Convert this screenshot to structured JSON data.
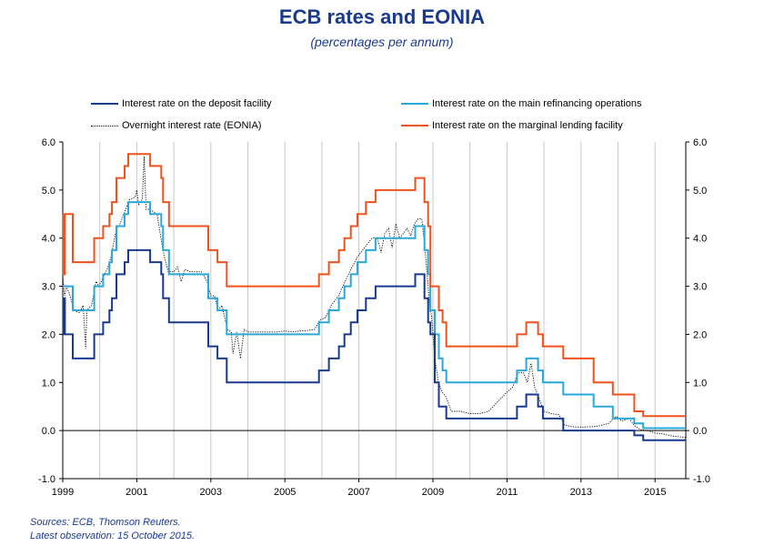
{
  "title": "ECB rates and EONIA",
  "subtitle": "(percentages per annum)",
  "footer": {
    "sources": "Sources: ECB, Thomson Reuters.",
    "latest": "Latest observation: 15 October 2015."
  },
  "colors": {
    "deposit": "#173a8c",
    "mro": "#2aa8d8",
    "marginal": "#f0521e",
    "eonia": "#000000",
    "grid": "#c8c8c8"
  },
  "chart_data": {
    "type": "line",
    "title": "ECB rates and EONIA",
    "subtitle": "(percentages per annum)",
    "xlim": [
      1999.0,
      2015.83
    ],
    "ylim": [
      -1.0,
      6.0
    ],
    "x_ticks": [
      "1999",
      "2001",
      "2003",
      "2005",
      "2007",
      "2009",
      "2011",
      "2013",
      "2015"
    ],
    "y_ticks": [
      "-1.0",
      "0.0",
      "1.0",
      "2.0",
      "3.0",
      "4.0",
      "5.0",
      "6.0"
    ],
    "grid": "vertical",
    "legend_position": "top",
    "series": [
      {
        "name": "Interest rate on the deposit facility",
        "style": "step",
        "points": [
          [
            1999.0,
            2.0
          ],
          [
            1999.02,
            2.75
          ],
          [
            1999.06,
            2.0
          ],
          [
            1999.27,
            1.5
          ],
          [
            1999.85,
            2.0
          ],
          [
            2000.09,
            2.25
          ],
          [
            2000.26,
            2.5
          ],
          [
            2000.33,
            2.75
          ],
          [
            2000.45,
            3.25
          ],
          [
            2000.67,
            3.5
          ],
          [
            2000.77,
            3.75
          ],
          [
            2001.36,
            3.5
          ],
          [
            2001.66,
            3.25
          ],
          [
            2001.71,
            2.75
          ],
          [
            2001.87,
            2.25
          ],
          [
            2002.93,
            1.75
          ],
          [
            2003.18,
            1.5
          ],
          [
            2003.43,
            1.0
          ],
          [
            2005.92,
            1.25
          ],
          [
            2006.19,
            1.5
          ],
          [
            2006.46,
            1.75
          ],
          [
            2006.61,
            2.0
          ],
          [
            2006.78,
            2.25
          ],
          [
            2006.96,
            2.5
          ],
          [
            2007.19,
            2.75
          ],
          [
            2007.45,
            3.0
          ],
          [
            2008.52,
            3.25
          ],
          [
            2008.77,
            2.75
          ],
          [
            2008.87,
            2.25
          ],
          [
            2008.93,
            2.0
          ],
          [
            2009.05,
            1.0
          ],
          [
            2009.16,
            0.5
          ],
          [
            2009.36,
            0.25
          ],
          [
            2011.27,
            0.5
          ],
          [
            2011.52,
            0.75
          ],
          [
            2011.84,
            0.5
          ],
          [
            2011.97,
            0.25
          ],
          [
            2012.52,
            0.0
          ],
          [
            2014.44,
            -0.1
          ],
          [
            2014.68,
            -0.2
          ],
          [
            2015.83,
            -0.2
          ]
        ]
      },
      {
        "name": "Interest rate on the main refinancing operations",
        "style": "step",
        "points": [
          [
            1999.0,
            3.0
          ],
          [
            1999.27,
            2.5
          ],
          [
            1999.85,
            3.0
          ],
          [
            2000.09,
            3.25
          ],
          [
            2000.26,
            3.5
          ],
          [
            2000.33,
            3.75
          ],
          [
            2000.45,
            4.25
          ],
          [
            2000.67,
            4.5
          ],
          [
            2000.77,
            4.75
          ],
          [
            2001.36,
            4.5
          ],
          [
            2001.66,
            4.25
          ],
          [
            2001.71,
            3.75
          ],
          [
            2001.87,
            3.25
          ],
          [
            2002.93,
            2.75
          ],
          [
            2003.18,
            2.5
          ],
          [
            2003.43,
            2.0
          ],
          [
            2005.92,
            2.25
          ],
          [
            2006.19,
            2.5
          ],
          [
            2006.46,
            2.75
          ],
          [
            2006.61,
            3.0
          ],
          [
            2006.78,
            3.25
          ],
          [
            2006.96,
            3.5
          ],
          [
            2007.19,
            3.75
          ],
          [
            2007.45,
            4.0
          ],
          [
            2008.52,
            4.25
          ],
          [
            2008.77,
            3.75
          ],
          [
            2008.87,
            3.25
          ],
          [
            2008.93,
            2.5
          ],
          [
            2009.05,
            2.0
          ],
          [
            2009.16,
            1.5
          ],
          [
            2009.26,
            1.25
          ],
          [
            2009.36,
            1.0
          ],
          [
            2011.27,
            1.25
          ],
          [
            2011.52,
            1.5
          ],
          [
            2011.84,
            1.25
          ],
          [
            2011.97,
            1.0
          ],
          [
            2012.52,
            0.75
          ],
          [
            2013.34,
            0.5
          ],
          [
            2013.86,
            0.25
          ],
          [
            2014.44,
            0.15
          ],
          [
            2014.68,
            0.05
          ],
          [
            2015.83,
            0.05
          ]
        ]
      },
      {
        "name": "Interest rate on the marginal lending facility",
        "style": "step",
        "points": [
          [
            1999.0,
            4.5
          ],
          [
            1999.02,
            3.25
          ],
          [
            1999.06,
            4.5
          ],
          [
            1999.27,
            3.5
          ],
          [
            1999.85,
            4.0
          ],
          [
            2000.09,
            4.25
          ],
          [
            2000.26,
            4.5
          ],
          [
            2000.33,
            4.75
          ],
          [
            2000.45,
            5.25
          ],
          [
            2000.67,
            5.5
          ],
          [
            2000.77,
            5.75
          ],
          [
            2001.36,
            5.5
          ],
          [
            2001.66,
            5.25
          ],
          [
            2001.71,
            4.75
          ],
          [
            2001.87,
            4.25
          ],
          [
            2002.93,
            3.75
          ],
          [
            2003.18,
            3.5
          ],
          [
            2003.43,
            3.0
          ],
          [
            2005.92,
            3.25
          ],
          [
            2006.19,
            3.5
          ],
          [
            2006.46,
            3.75
          ],
          [
            2006.61,
            4.0
          ],
          [
            2006.78,
            4.25
          ],
          [
            2006.96,
            4.5
          ],
          [
            2007.19,
            4.75
          ],
          [
            2007.45,
            5.0
          ],
          [
            2008.52,
            5.25
          ],
          [
            2008.77,
            4.75
          ],
          [
            2008.87,
            4.25
          ],
          [
            2008.93,
            3.0
          ],
          [
            2009.05,
            3.0
          ],
          [
            2009.16,
            2.5
          ],
          [
            2009.26,
            2.25
          ],
          [
            2009.36,
            1.75
          ],
          [
            2011.27,
            2.0
          ],
          [
            2011.52,
            2.25
          ],
          [
            2011.84,
            2.0
          ],
          [
            2011.97,
            1.75
          ],
          [
            2012.52,
            1.5
          ],
          [
            2013.34,
            1.0
          ],
          [
            2013.86,
            0.75
          ],
          [
            2014.44,
            0.4
          ],
          [
            2014.68,
            0.3
          ],
          [
            2015.83,
            0.3
          ]
        ]
      },
      {
        "name": "Overnight interest rate (EONIA)",
        "style": "dotted",
        "points": [
          [
            1999.0,
            3.2
          ],
          [
            1999.05,
            2.8
          ],
          [
            1999.1,
            3.0
          ],
          [
            1999.2,
            2.8
          ],
          [
            1999.3,
            2.5
          ],
          [
            1999.45,
            2.45
          ],
          [
            1999.55,
            2.6
          ],
          [
            1999.62,
            1.7
          ],
          [
            1999.65,
            2.5
          ],
          [
            1999.78,
            2.6
          ],
          [
            1999.9,
            3.1
          ],
          [
            1999.98,
            3.0
          ],
          [
            2000.1,
            3.2
          ],
          [
            2000.2,
            3.35
          ],
          [
            2000.3,
            3.6
          ],
          [
            2000.45,
            4.2
          ],
          [
            2000.55,
            4.3
          ],
          [
            2000.7,
            4.6
          ],
          [
            2000.8,
            4.8
          ],
          [
            2000.95,
            4.85
          ],
          [
            2001.0,
            5.0
          ],
          [
            2001.05,
            4.7
          ],
          [
            2001.15,
            4.8
          ],
          [
            2001.2,
            5.7
          ],
          [
            2001.25,
            4.6
          ],
          [
            2001.35,
            4.6
          ],
          [
            2001.45,
            4.55
          ],
          [
            2001.55,
            4.5
          ],
          [
            2001.65,
            4.0
          ],
          [
            2001.75,
            3.6
          ],
          [
            2001.85,
            3.3
          ],
          [
            2002.0,
            3.3
          ],
          [
            2002.1,
            3.4
          ],
          [
            2002.2,
            3.1
          ],
          [
            2002.3,
            3.35
          ],
          [
            2002.45,
            3.3
          ],
          [
            2002.6,
            3.3
          ],
          [
            2002.75,
            3.3
          ],
          [
            2002.9,
            3.1
          ],
          [
            2003.0,
            2.8
          ],
          [
            2003.1,
            2.8
          ],
          [
            2003.2,
            2.5
          ],
          [
            2003.3,
            2.6
          ],
          [
            2003.45,
            2.1
          ],
          [
            2003.55,
            2.05
          ],
          [
            2003.6,
            1.6
          ],
          [
            2003.7,
            2.05
          ],
          [
            2003.8,
            1.5
          ],
          [
            2003.9,
            2.1
          ],
          [
            2004.0,
            2.05
          ],
          [
            2004.2,
            2.05
          ],
          [
            2004.4,
            2.05
          ],
          [
            2004.6,
            2.05
          ],
          [
            2004.8,
            2.05
          ],
          [
            2005.0,
            2.07
          ],
          [
            2005.2,
            2.05
          ],
          [
            2005.4,
            2.07
          ],
          [
            2005.6,
            2.08
          ],
          [
            2005.8,
            2.1
          ],
          [
            2005.95,
            2.3
          ],
          [
            2006.1,
            2.35
          ],
          [
            2006.25,
            2.6
          ],
          [
            2006.45,
            2.8
          ],
          [
            2006.6,
            3.05
          ],
          [
            2006.75,
            3.3
          ],
          [
            2006.95,
            3.6
          ],
          [
            2007.15,
            3.8
          ],
          [
            2007.35,
            4.0
          ],
          [
            2007.5,
            4.0
          ],
          [
            2007.6,
            3.7
          ],
          [
            2007.7,
            4.1
          ],
          [
            2007.8,
            4.2
          ],
          [
            2007.9,
            3.8
          ],
          [
            2008.0,
            4.3
          ],
          [
            2008.1,
            4.0
          ],
          [
            2008.2,
            4.1
          ],
          [
            2008.3,
            4.2
          ],
          [
            2008.4,
            4.05
          ],
          [
            2008.5,
            4.3
          ],
          [
            2008.6,
            4.4
          ],
          [
            2008.7,
            4.4
          ],
          [
            2008.78,
            3.8
          ],
          [
            2008.85,
            3.2
          ],
          [
            2008.92,
            2.5
          ],
          [
            2008.96,
            2.4
          ],
          [
            2009.05,
            1.5
          ],
          [
            2009.15,
            1.0
          ],
          [
            2009.25,
            0.8
          ],
          [
            2009.35,
            0.7
          ],
          [
            2009.5,
            0.4
          ],
          [
            2009.75,
            0.4
          ],
          [
            2010.0,
            0.35
          ],
          [
            2010.25,
            0.35
          ],
          [
            2010.5,
            0.4
          ],
          [
            2010.75,
            0.6
          ],
          [
            2011.0,
            0.8
          ],
          [
            2011.15,
            0.9
          ],
          [
            2011.3,
            1.2
          ],
          [
            2011.45,
            1.2
          ],
          [
            2011.55,
            1.0
          ],
          [
            2011.65,
            1.4
          ],
          [
            2011.75,
            0.9
          ],
          [
            2011.85,
            0.7
          ],
          [
            2012.0,
            0.4
          ],
          [
            2012.2,
            0.35
          ],
          [
            2012.4,
            0.33
          ],
          [
            2012.55,
            0.12
          ],
          [
            2012.75,
            0.08
          ],
          [
            2013.0,
            0.07
          ],
          [
            2013.3,
            0.08
          ],
          [
            2013.5,
            0.1
          ],
          [
            2013.75,
            0.15
          ],
          [
            2013.95,
            0.3
          ],
          [
            2014.1,
            0.2
          ],
          [
            2014.3,
            0.25
          ],
          [
            2014.45,
            0.1
          ],
          [
            2014.6,
            0.02
          ],
          [
            2014.8,
            0.0
          ],
          [
            2015.0,
            -0.05
          ],
          [
            2015.2,
            -0.07
          ],
          [
            2015.45,
            -0.11
          ],
          [
            2015.65,
            -0.13
          ],
          [
            2015.83,
            -0.14
          ]
        ]
      }
    ]
  }
}
